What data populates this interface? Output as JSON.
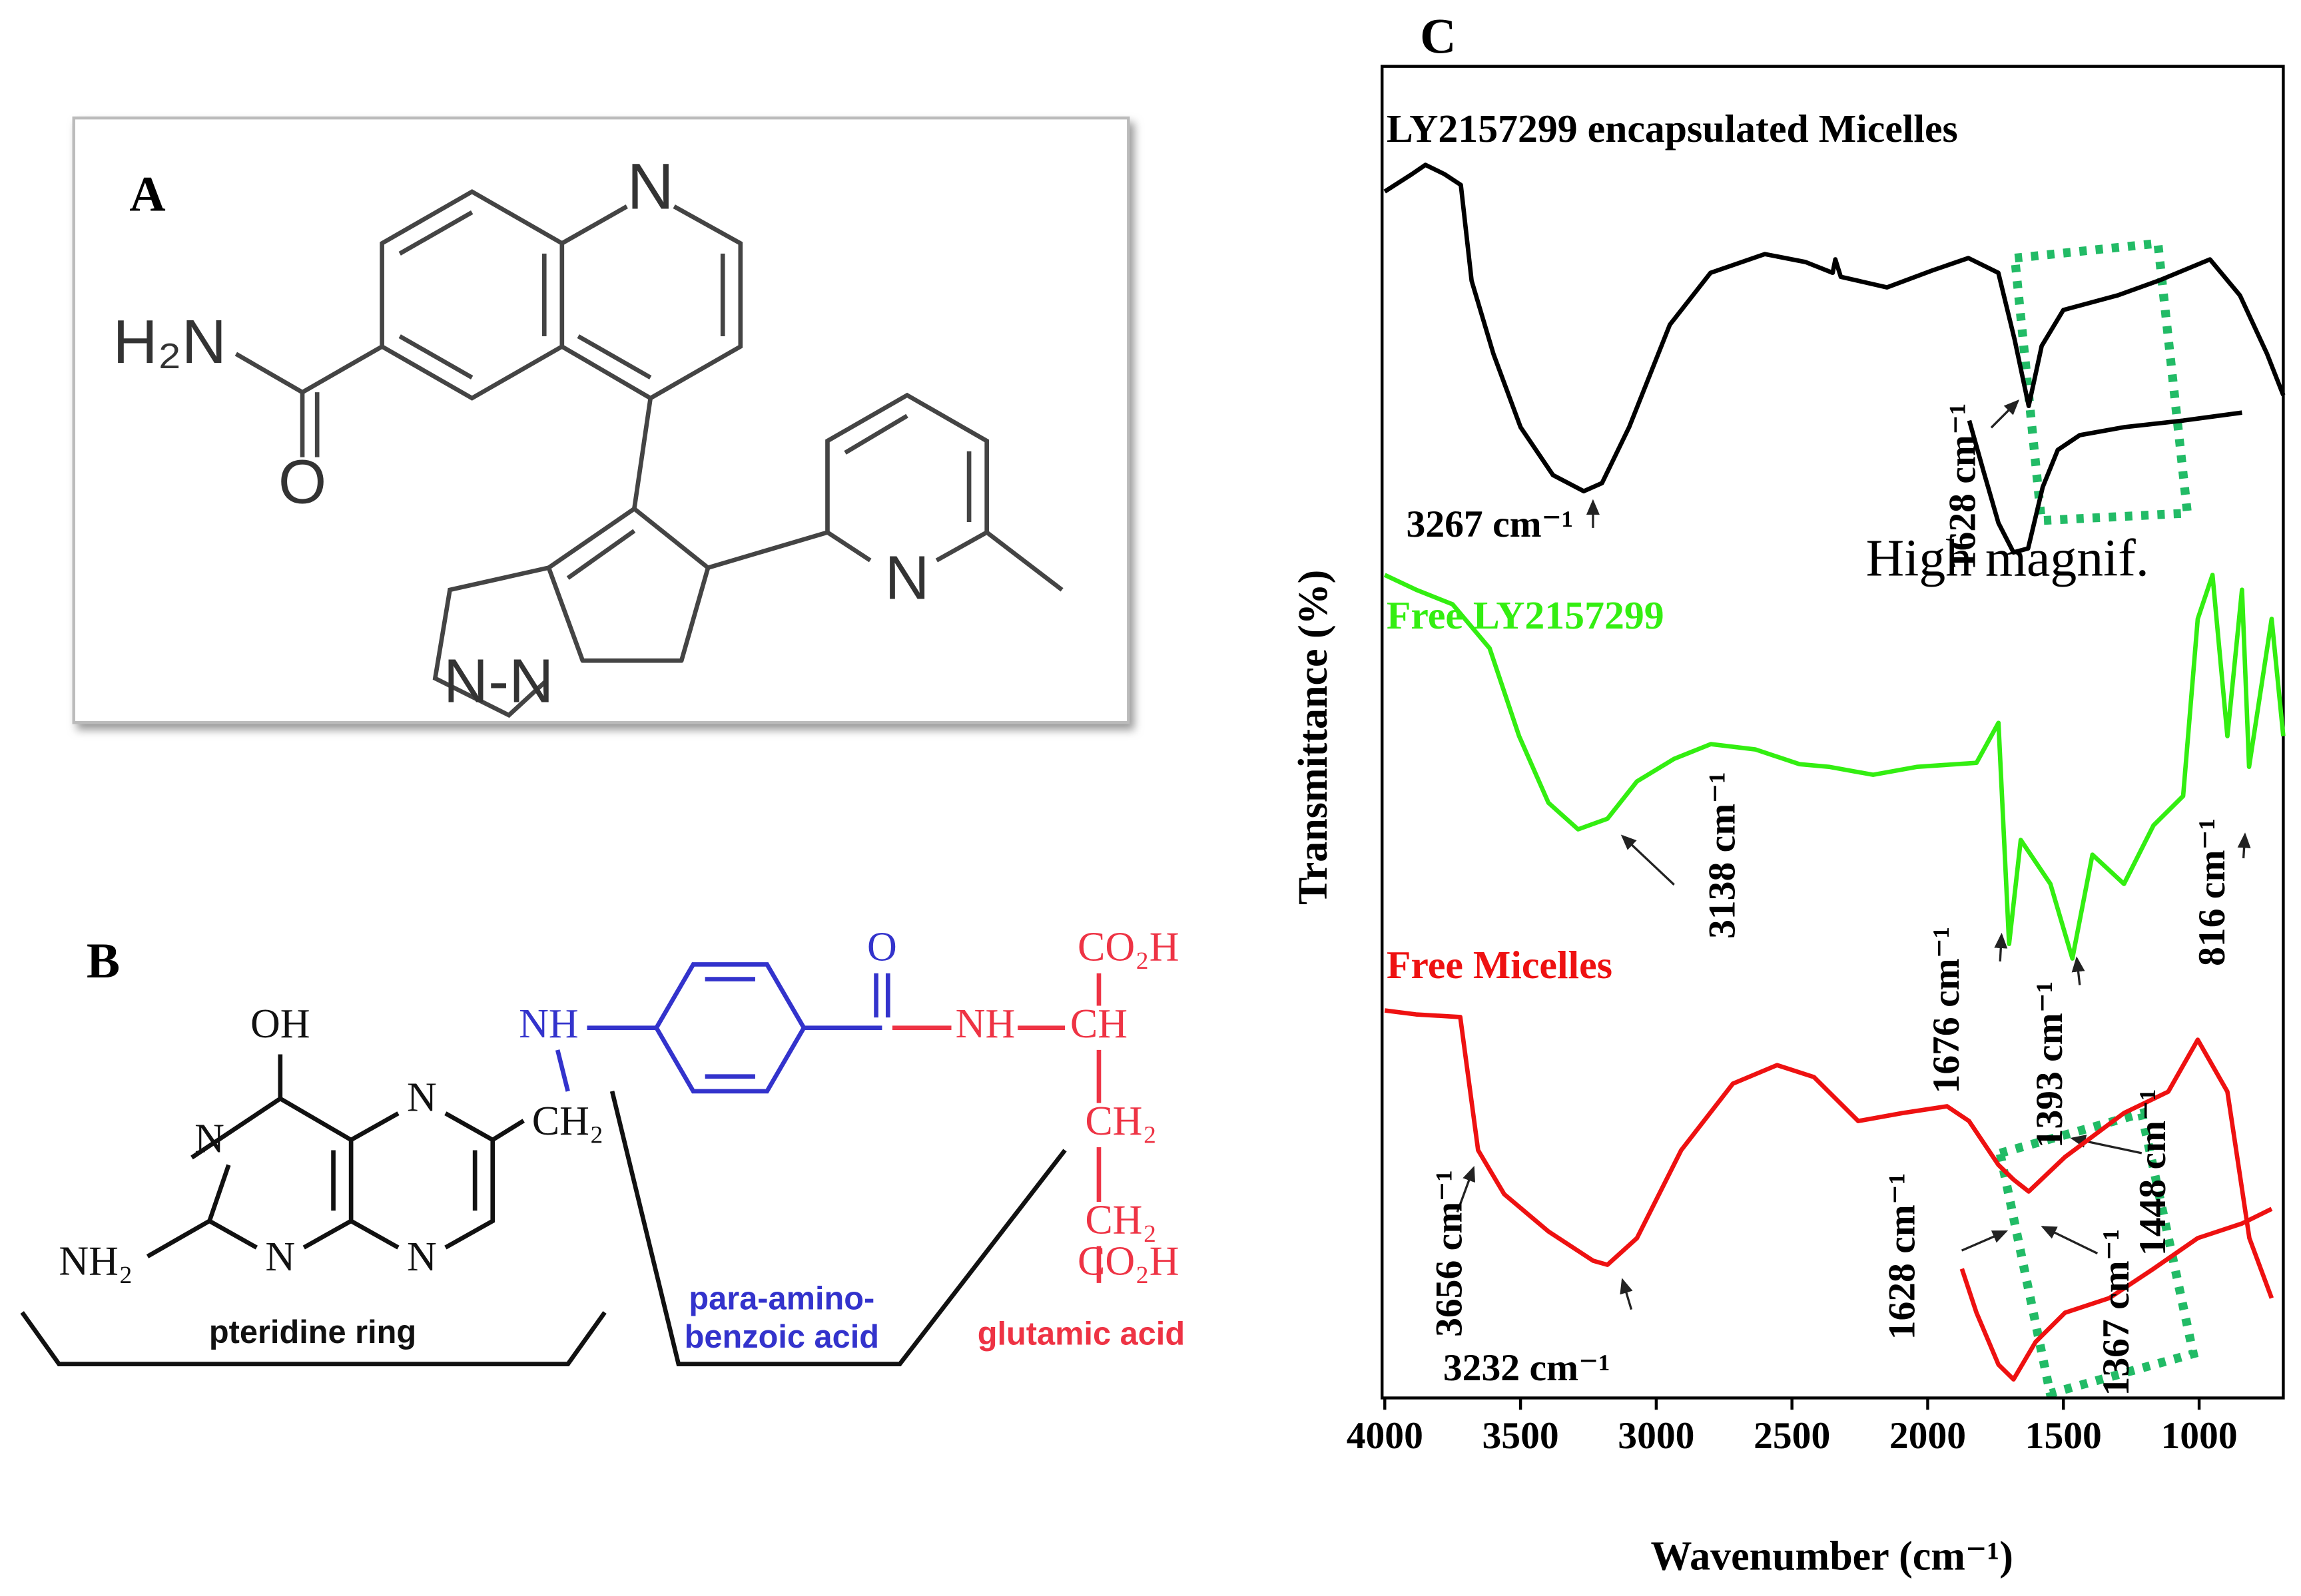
{
  "panel_a": {
    "label": "A",
    "atoms": [
      "N",
      "H₂N",
      "O",
      "N",
      "N-N"
    ]
  },
  "panel_b": {
    "label": "B",
    "labels": [
      "OH",
      "N",
      "N",
      "N",
      "N",
      "NH₂",
      "NH",
      "CH₂",
      "O",
      "NH",
      "CH",
      "CO₂H",
      "CH₂",
      "CH₂",
      "CO₂H",
      "pteridine ring",
      "para-amino-",
      "benzoic acid",
      "glutamic acid"
    ]
  },
  "chart_data": {
    "type": "line",
    "panel_label": "C",
    "xlabel": "Wavenumber (cm⁻¹)",
    "ylabel": "Transmittance (%)",
    "xlim": [
      4010,
      690
    ],
    "ylim": [
      0,
      100
    ],
    "xticks": [
      4000,
      3500,
      3000,
      2500,
      2000,
      1500,
      1000
    ],
    "grid": false,
    "series": [
      {
        "name": "LY2157299 encapsulated Micelles",
        "color": "#000000",
        "x": [
          4000,
          3900,
          3850,
          3780,
          3720,
          3680,
          3600,
          3500,
          3380,
          3267,
          3200,
          3100,
          2950,
          2800,
          2600,
          2450,
          2350,
          2340,
          2320,
          2150,
          1980,
          1850,
          1740,
          1680,
          1628,
          1580,
          1500,
          1300,
          1150,
          960,
          850,
          750,
          690
        ],
        "values": [
          90.6,
          91.9,
          92.6,
          91.9,
          91.1,
          83.9,
          78.4,
          72.9,
          69.3,
          68.1,
          68.7,
          72.9,
          80.6,
          84.5,
          85.9,
          85.3,
          84.5,
          85.5,
          84.2,
          83.4,
          84.7,
          85.6,
          84.5,
          79.5,
          74.5,
          79.0,
          81.7,
          82.8,
          83.9,
          85.5,
          82.8,
          78.4,
          75.3
        ]
      },
      {
        "color": "#000000",
        "x": [
          1847,
          1793,
          1739,
          1684,
          1630,
          1576,
          1521,
          1440,
          1277,
          1059,
          842
        ],
        "values": [
          73.4,
          69.5,
          65.7,
          63.5,
          63.8,
          68.4,
          71.2,
          72.3,
          72.9,
          73.4,
          74.0
        ]
      },
      {
        "name": "Free LY2157299",
        "color": "#33ee11",
        "x": [
          4000,
          3885,
          3750,
          3614,
          3505,
          3397,
          3288,
          3180,
          3071,
          2934,
          2799,
          2635,
          2472,
          2364,
          2201,
          2038,
          1820,
          1739,
          1700,
          1657,
          1548,
          1467,
          1393,
          1277,
          1168,
          1059,
          1005,
          951,
          896,
          842,
          816,
          733,
          690
        ],
        "values": [
          61.8,
          60.7,
          59.6,
          56.3,
          49.7,
          44.7,
          42.7,
          43.5,
          46.3,
          48.0,
          49.1,
          48.7,
          47.6,
          47.4,
          46.8,
          47.4,
          47.7,
          50.7,
          34.1,
          41.9,
          38.6,
          33.0,
          40.8,
          38.6,
          43.0,
          45.2,
          58.5,
          61.8,
          49.7,
          60.7,
          47.4,
          58.5,
          49.7
        ]
      },
      {
        "name": "Free Micelles",
        "color": "#ee1111",
        "x": [
          4000,
          3885,
          3722,
          3656,
          3560,
          3397,
          3232,
          3180,
          3071,
          2908,
          2718,
          2555,
          2419,
          2256,
          2093,
          1929,
          1848,
          1739,
          1684,
          1628,
          1494,
          1277,
          1114,
          1005,
          896,
          815,
          733
        ],
        "values": [
          29.1,
          28.8,
          28.6,
          18.6,
          15.3,
          12.5,
          10.3,
          10.0,
          12.0,
          18.6,
          23.6,
          25.0,
          24.1,
          20.8,
          21.4,
          21.9,
          20.8,
          17.5,
          16.4,
          15.5,
          18.1,
          21.4,
          23.0,
          26.9,
          23.0,
          12.0,
          7.5
        ]
      },
      {
        "color": "#ee1111",
        "x": [
          1874,
          1820,
          1739,
          1684,
          1603,
          1494,
          1331,
          1168,
          1005,
          842,
          733
        ],
        "values": [
          9.7,
          6.4,
          2.5,
          1.4,
          4.2,
          6.4,
          7.5,
          9.7,
          12.0,
          13.1,
          14.2
        ]
      }
    ],
    "annotations": [
      "3267 cm⁻¹",
      "1628 cm⁻¹",
      "High magnif.",
      "3138 cm⁻¹",
      "1676 cm⁻¹",
      "1393 cm⁻¹",
      "816 cm⁻¹",
      "3656 cm⁻¹",
      "3232 cm⁻¹",
      "1628 cm⁻¹",
      "1367 cm⁻¹",
      "1448 cm⁻¹"
    ]
  }
}
